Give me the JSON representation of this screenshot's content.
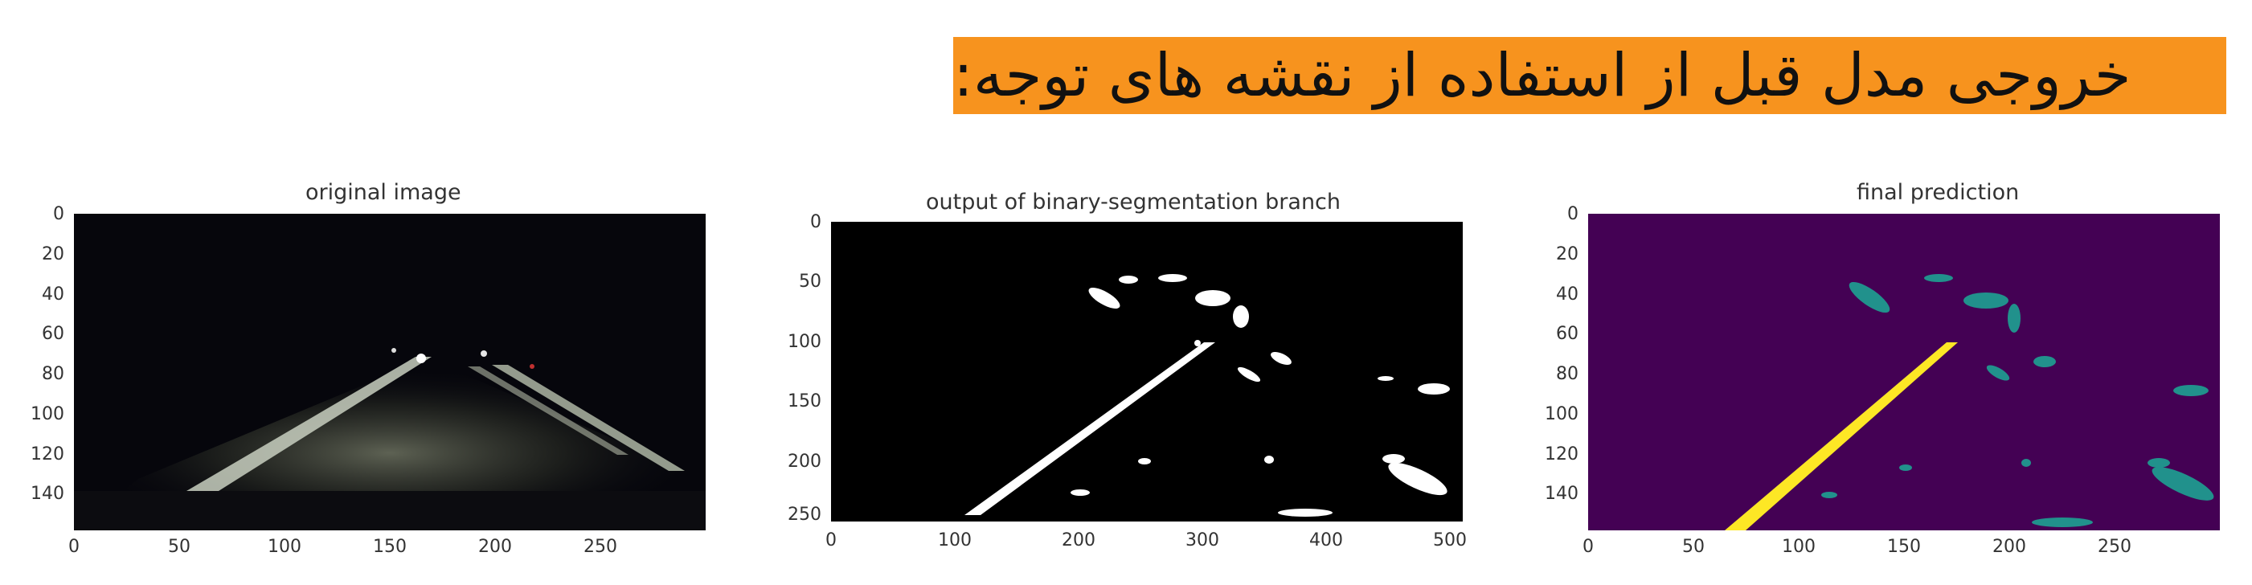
{
  "heading": "خروجی مدل قبل از استفاده از نقشه های توجه:",
  "colors": {
    "heading_bg": "#f7931e",
    "road_dark": "#0a0a10",
    "viridis_bg": "#440154",
    "viridis_lane": "#fde725",
    "viridis_cluster": "#21918c"
  },
  "panels": [
    {
      "title": "original image",
      "yticks": [
        "0",
        "20",
        "40",
        "60",
        "80",
        "100",
        "120",
        "140"
      ],
      "xticks": [
        "0",
        "50",
        "100",
        "150",
        "200",
        "250"
      ]
    },
    {
      "title": "output of binary-segmentation branch",
      "yticks": [
        "0",
        "50",
        "100",
        "150",
        "200",
        "250"
      ],
      "xticks": [
        "0",
        "100",
        "200",
        "300",
        "400",
        "500"
      ]
    },
    {
      "title": "final prediction",
      "yticks": [
        "0",
        "20",
        "40",
        "60",
        "80",
        "100",
        "120",
        "140"
      ],
      "xticks": [
        "0",
        "50",
        "100",
        "150",
        "200",
        "250"
      ]
    }
  ]
}
